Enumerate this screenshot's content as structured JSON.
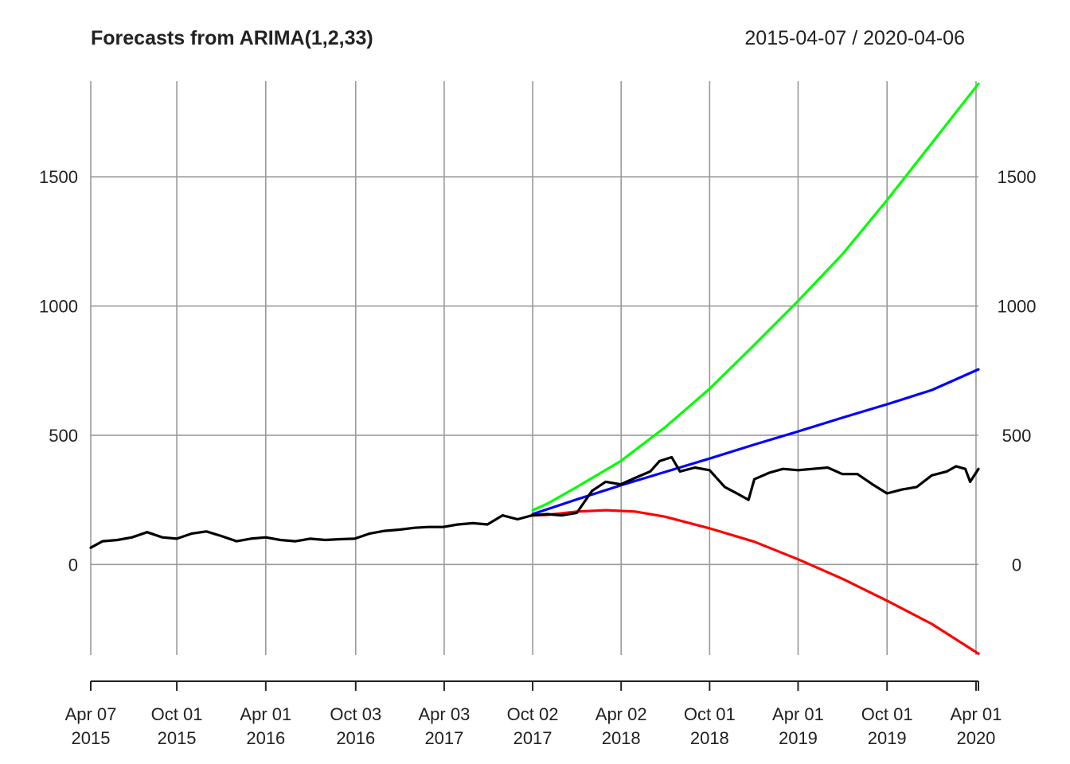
{
  "chart_data": {
    "type": "line",
    "title": "Forecasts from ARIMA(1,2,33)",
    "date_range": "2015-04-07 / 2020-04-06",
    "xlabel": "",
    "ylabel": "",
    "xlim": [
      "2015-04-07",
      "2020-04-06"
    ],
    "ylim": [
      -350,
      1870
    ],
    "grid": true,
    "y_ticks": [
      0,
      500,
      1000,
      1500
    ],
    "y_tick_labels": [
      "0",
      "500",
      "1000",
      "1500"
    ],
    "x_ticks": [
      {
        "date": "2015-04-07",
        "label1": "Apr 07",
        "label2": "2015"
      },
      {
        "date": "2015-10-01",
        "label1": "Oct 01",
        "label2": "2015"
      },
      {
        "date": "2016-04-01",
        "label1": "Apr 01",
        "label2": "2016"
      },
      {
        "date": "2016-10-03",
        "label1": "Oct 03",
        "label2": "2016"
      },
      {
        "date": "2017-04-03",
        "label1": "Apr 03",
        "label2": "2017"
      },
      {
        "date": "2017-10-02",
        "label1": "Oct 02",
        "label2": "2017"
      },
      {
        "date": "2018-04-02",
        "label1": "Apr 02",
        "label2": "2018"
      },
      {
        "date": "2018-10-01",
        "label1": "Oct 01",
        "label2": "2018"
      },
      {
        "date": "2019-04-01",
        "label1": "Apr 01",
        "label2": "2019"
      },
      {
        "date": "2019-10-01",
        "label1": "Oct 01",
        "label2": "2019"
      },
      {
        "date": "2020-04-01",
        "label1": "Apr 01",
        "label2": "2020"
      }
    ],
    "series": [
      {
        "color": "#000000",
        "x": [
          "2015-04-07",
          "2015-05-01",
          "2015-06-01",
          "2015-07-01",
          "2015-08-01",
          "2015-09-01",
          "2015-10-01",
          "2015-11-01",
          "2015-12-01",
          "2016-01-01",
          "2016-02-01",
          "2016-03-01",
          "2016-04-01",
          "2016-05-01",
          "2016-06-01",
          "2016-07-01",
          "2016-08-01",
          "2016-09-01",
          "2016-10-01",
          "2016-11-01",
          "2016-12-01",
          "2017-01-01",
          "2017-02-01",
          "2017-03-01",
          "2017-04-01",
          "2017-05-01",
          "2017-06-01",
          "2017-07-01",
          "2017-08-01",
          "2017-09-01",
          "2017-10-01",
          "2017-11-01",
          "2017-12-01",
          "2018-01-01",
          "2018-02-01",
          "2018-03-01",
          "2018-04-01",
          "2018-05-01",
          "2018-06-01",
          "2018-06-20",
          "2018-07-15",
          "2018-08-01",
          "2018-09-01",
          "2018-10-01",
          "2018-11-01",
          "2018-12-01",
          "2018-12-20",
          "2019-01-01",
          "2019-02-01",
          "2019-03-01",
          "2019-04-01",
          "2019-05-01",
          "2019-06-01",
          "2019-07-01",
          "2019-08-01",
          "2019-09-01",
          "2019-10-01",
          "2019-11-01",
          "2019-12-01",
          "2020-01-01",
          "2020-02-01",
          "2020-02-20",
          "2020-03-10",
          "2020-03-20",
          "2020-04-06"
        ],
        "values": [
          65,
          90,
          95,
          105,
          125,
          105,
          100,
          120,
          128,
          110,
          90,
          100,
          105,
          95,
          90,
          100,
          95,
          98,
          100,
          120,
          130,
          135,
          142,
          145,
          145,
          155,
          160,
          155,
          190,
          175,
          190,
          195,
          190,
          200,
          285,
          320,
          310,
          335,
          360,
          400,
          415,
          360,
          375,
          365,
          300,
          270,
          250,
          330,
          355,
          370,
          365,
          370,
          375,
          350,
          350,
          310,
          275,
          290,
          300,
          345,
          360,
          380,
          370,
          320,
          370
        ]
      },
      {
        "color": "#0000ff",
        "x": [
          "2017-10-02",
          "2018-01-01",
          "2018-04-01",
          "2018-07-01",
          "2018-10-01",
          "2019-01-01",
          "2019-04-01",
          "2019-07-01",
          "2019-10-01",
          "2020-01-01",
          "2020-04-06"
        ],
        "values": [
          195,
          252,
          306,
          358,
          410,
          464,
          515,
          568,
          620,
          675,
          755
        ]
      },
      {
        "color": "#ff0000",
        "x": [
          "2017-10-02",
          "2017-11-01",
          "2018-01-01",
          "2018-03-01",
          "2018-05-01",
          "2018-07-01",
          "2018-10-01",
          "2019-01-01",
          "2019-04-01",
          "2019-07-01",
          "2019-10-01",
          "2020-01-01",
          "2020-04-06"
        ],
        "values": [
          190,
          192,
          205,
          210,
          205,
          185,
          140,
          88,
          20,
          -55,
          -140,
          -230,
          -345
        ]
      },
      {
        "color": "#00ff00",
        "x": [
          "2017-10-02",
          "2017-11-01",
          "2018-01-01",
          "2018-04-01",
          "2018-07-01",
          "2018-10-01",
          "2019-01-01",
          "2019-04-01",
          "2019-07-01",
          "2019-10-01",
          "2020-01-01",
          "2020-04-06"
        ],
        "values": [
          210,
          235,
          300,
          400,
          530,
          680,
          850,
          1020,
          1200,
          1410,
          1630,
          1860
        ]
      }
    ]
  }
}
